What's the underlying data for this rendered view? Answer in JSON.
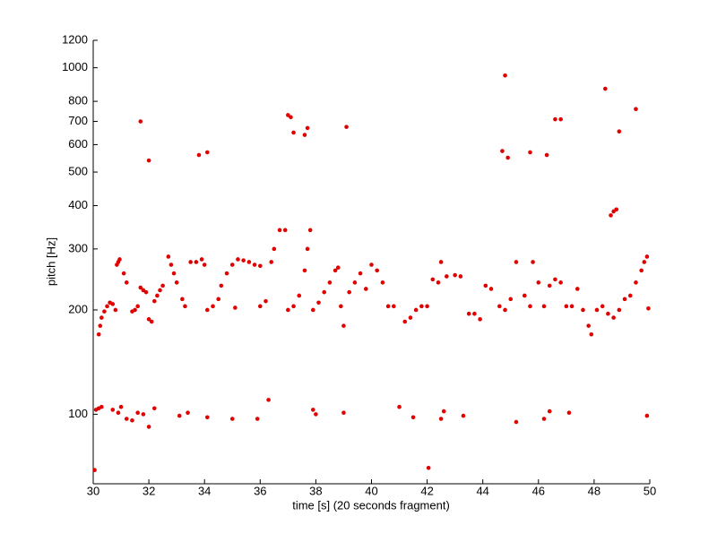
{
  "chart_data": {
    "type": "scatter",
    "x_label": "time [s] (20 seconds fragment)",
    "y_label": "pitch [Hz]",
    "color": "#e00000",
    "xlim": [
      30,
      50
    ],
    "xticks": [
      30,
      32,
      34,
      36,
      38,
      40,
      42,
      44,
      46,
      48,
      50
    ],
    "ylim": [
      63,
      1200
    ],
    "yticks": [
      100,
      200,
      300,
      400,
      500,
      600,
      700,
      800,
      1000,
      1200
    ],
    "ylog": true,
    "grid": false,
    "x": [
      30.2,
      30.25,
      30.3,
      30.4,
      30.5,
      30.6,
      30.7,
      30.8,
      30.85,
      30.9,
      30.95,
      31.1,
      31.2,
      31.4,
      31.5,
      31.6,
      31.7,
      31.8,
      31.9,
      32.0,
      32.1,
      32.2,
      32.3,
      32.4,
      32.5,
      32.7,
      32.8,
      32.9,
      33.0,
      33.2,
      33.3,
      33.5,
      33.7,
      33.9,
      34.0,
      34.1,
      34.3,
      34.5,
      34.6,
      34.8,
      35.0,
      35.2,
      35.4,
      35.6,
      35.8,
      36.0,
      35.1,
      36.0,
      36.2,
      36.4,
      36.5,
      36.7,
      36.9,
      37.0,
      37.2,
      37.4,
      37.6,
      37.7,
      37.8,
      37.9,
      38.1,
      38.3,
      38.5,
      38.7,
      38.8,
      38.9,
      39.0,
      39.2,
      39.4,
      39.6,
      39.8,
      40.0,
      40.2,
      40.4,
      40.6,
      40.8,
      41.2,
      41.4,
      41.6,
      41.8,
      42.0,
      42.2,
      42.4,
      42.5,
      42.7,
      43.0,
      43.2,
      43.5,
      43.7,
      43.9,
      44.1,
      44.3,
      44.6,
      44.8,
      45.0,
      45.2,
      45.5,
      45.7,
      45.8,
      46.0,
      46.2,
      46.4,
      46.6,
      46.8,
      47.0,
      47.2,
      47.4,
      47.6,
      47.8,
      47.9,
      48.1,
      48.3,
      48.5,
      48.7,
      48.9,
      49.1,
      49.3,
      49.5,
      49.7,
      49.8,
      49.9,
      49.95,
      31.7,
      32.0,
      33.8,
      34.1,
      37.0,
      37.1,
      37.2,
      37.6,
      37.7,
      39.1,
      44.7,
      44.8,
      44.9,
      45.7,
      46.3,
      46.6,
      46.8,
      48.4,
      48.6,
      48.7,
      48.8,
      48.9,
      49.5,
      30.1,
      30.2,
      30.3,
      30.7,
      30.9,
      31.0,
      31.2,
      31.4,
      31.6,
      31.8,
      32.0,
      32.2,
      30.05,
      33.1,
      33.4,
      34.1,
      35.0,
      35.9,
      36.3,
      37.9,
      38.0,
      39.0,
      41.0,
      41.5,
      42.5,
      42.6,
      43.3,
      45.2,
      46.2,
      46.4,
      47.1,
      49.9,
      42.05
    ],
    "values": [
      170,
      180,
      190,
      198,
      205,
      210,
      208,
      200,
      270,
      275,
      280,
      255,
      240,
      198,
      200,
      205,
      232,
      228,
      225,
      188,
      185,
      212,
      220,
      228,
      235,
      285,
      270,
      255,
      240,
      215,
      205,
      275,
      275,
      280,
      270,
      200,
      205,
      215,
      235,
      255,
      270,
      280,
      278,
      275,
      270,
      268,
      203,
      205,
      212,
      275,
      300,
      340,
      340,
      200,
      205,
      220,
      260,
      300,
      340,
      200,
      210,
      225,
      240,
      260,
      265,
      205,
      180,
      225,
      240,
      255,
      230,
      270,
      260,
      240,
      205,
      205,
      185,
      190,
      200,
      205,
      205,
      245,
      240,
      275,
      250,
      252,
      250,
      195,
      195,
      188,
      235,
      230,
      205,
      200,
      215,
      275,
      220,
      205,
      275,
      240,
      205,
      235,
      245,
      240,
      205,
      205,
      230,
      200,
      180,
      170,
      200,
      205,
      195,
      190,
      200,
      215,
      220,
      240,
      260,
      275,
      285,
      202,
      700,
      540,
      560,
      570,
      730,
      720,
      650,
      640,
      670,
      675,
      575,
      950,
      550,
      570,
      560,
      710,
      710,
      870,
      375,
      385,
      390,
      655,
      760,
      103,
      104,
      105,
      103,
      101,
      105,
      97,
      96,
      101,
      100,
      92,
      104,
      69,
      99,
      101,
      98,
      97,
      97,
      110,
      103,
      100,
      101,
      105,
      98,
      97,
      102,
      99,
      95,
      97,
      102,
      101,
      99,
      70
    ]
  }
}
